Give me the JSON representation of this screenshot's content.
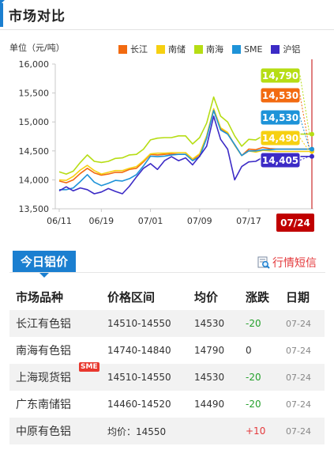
{
  "header": {
    "title": "市场对比"
  },
  "chart_data": {
    "type": "line",
    "ylabel": "单位（元/吨）",
    "ylim": [
      13500,
      16000
    ],
    "yticks": [
      "16,000",
      "15,500",
      "15,000",
      "14,500",
      "14,000",
      "13,500"
    ],
    "ytick_values": [
      16000,
      15500,
      15000,
      14500,
      14000,
      13500
    ],
    "xtick_labels": [
      "06/11",
      "06/19",
      "07/01",
      "07/09",
      "07/17"
    ],
    "xtick_index": [
      0,
      6,
      13,
      20,
      27
    ],
    "highlight_label": "07/24",
    "legend": [
      {
        "name": "长江",
        "color": "#f26a10"
      },
      {
        "name": "南储",
        "color": "#f6d011"
      },
      {
        "name": "南海",
        "color": "#b6dd14"
      },
      {
        "name": "SME",
        "color": "#1e93d8"
      },
      {
        "name": "沪铝",
        "color": "#3c2bc6"
      }
    ],
    "series": [
      {
        "name": "南海",
        "color": "#b6dd14",
        "values": [
          14140,
          14100,
          14150,
          14300,
          14430,
          14320,
          14300,
          14320,
          14370,
          14380,
          14430,
          14440,
          14530,
          14690,
          14720,
          14730,
          14730,
          14760,
          14760,
          14620,
          14730,
          14980,
          15430,
          15100,
          15000,
          14760,
          14580,
          14700,
          14690,
          14760,
          14790,
          14790,
          14790,
          14790,
          14790,
          14790,
          14790
        ]
      },
      {
        "name": "长江",
        "color": "#f26a10",
        "values": [
          13980,
          13950,
          14000,
          14110,
          14200,
          14120,
          14080,
          14100,
          14130,
          14130,
          14180,
          14200,
          14310,
          14440,
          14430,
          14440,
          14450,
          14440,
          14440,
          14340,
          14440,
          14750,
          15200,
          14890,
          14800,
          14600,
          14420,
          14530,
          14520,
          14560,
          14540,
          14530,
          14530,
          14530,
          14530,
          14530,
          14530
        ]
      },
      {
        "name": "南储",
        "color": "#f6d011",
        "values": [
          14000,
          13990,
          14060,
          14170,
          14250,
          14160,
          14100,
          14130,
          14160,
          14160,
          14200,
          14230,
          14330,
          14450,
          14460,
          14460,
          14470,
          14470,
          14470,
          14360,
          14450,
          14760,
          15230,
          14900,
          14820,
          14600,
          14420,
          14500,
          14480,
          14510,
          14500,
          14490,
          14490,
          14490,
          14490,
          14490,
          14490
        ]
      },
      {
        "name": "SME",
        "color": "#1e93d8",
        "values": [
          13830,
          13830,
          13860,
          13970,
          14090,
          13960,
          13900,
          13940,
          13990,
          13980,
          14020,
          14090,
          14240,
          14410,
          14400,
          14410,
          14430,
          14440,
          14440,
          14330,
          14400,
          14720,
          15200,
          14860,
          14790,
          14610,
          14420,
          14500,
          14500,
          14520,
          14520,
          14530,
          14530,
          14530,
          14530,
          14530,
          14530
        ]
      },
      {
        "name": "沪铝",
        "color": "#3c2bc6",
        "values": [
          13810,
          13880,
          13810,
          13860,
          13830,
          13760,
          13790,
          13850,
          13800,
          13760,
          13890,
          14050,
          14200,
          14280,
          14180,
          14330,
          14400,
          14330,
          14380,
          14260,
          14410,
          14580,
          15100,
          14700,
          14530,
          14000,
          14230,
          14310,
          14320,
          14390,
          14400,
          14405,
          14405,
          14405,
          14405,
          14405,
          14405
        ]
      }
    ],
    "value_labels": [
      {
        "text": "14,790",
        "bg": "#b6dd14"
      },
      {
        "text": "14,530",
        "bg": "#f26a10"
      },
      {
        "text": "14,530",
        "bg": "#1e93d8"
      },
      {
        "text": "14,490",
        "bg": "#f6d011"
      },
      {
        "text": "14,405",
        "bg": "#3c2bc6"
      }
    ]
  },
  "tab": {
    "label": "今日铝价"
  },
  "news_link": {
    "label": "行情短信"
  },
  "table": {
    "headers": [
      "市场品种",
      "价格区间",
      "均价",
      "涨跌",
      "日期"
    ],
    "rows": [
      {
        "market": "长江有色铝",
        "range": "14510-14550",
        "avg": "14530",
        "change": "-20",
        "date": "07-24"
      },
      {
        "market": "南海有色铝",
        "range": "14740-14840",
        "avg": "14790",
        "change": "0",
        "date": "07-24"
      },
      {
        "market": "上海现货铝",
        "badge": "SME",
        "range": "14510-14550",
        "avg": "14530",
        "change": "-20",
        "date": "07-24"
      },
      {
        "market": "广东南储铝",
        "range": "14460-14520",
        "avg": "14490",
        "change": "-20",
        "date": "07-24"
      },
      {
        "market": "中原有色铝",
        "range": "均价：14550",
        "avg": "",
        "change": "+10",
        "date": "07-24"
      }
    ]
  }
}
